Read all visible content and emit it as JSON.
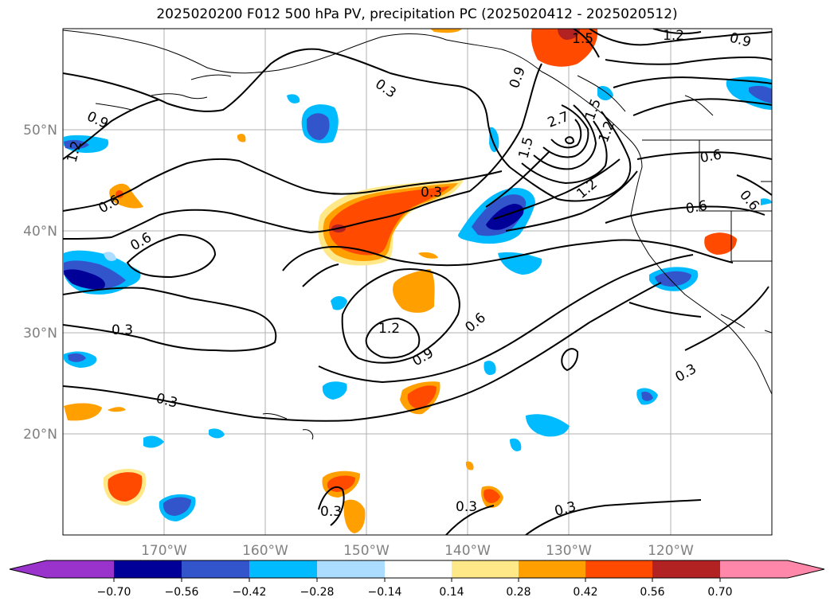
{
  "title": "2025020200 F012 500 hPa PV, precipitation PC (2025020412 - 2025020512)",
  "lat_labels": [
    "50°N",
    "40°N",
    "30°N",
    "20°N"
  ],
  "lon_labels": [
    "170°W",
    "160°W",
    "150°W",
    "140°W",
    "130°W",
    "120°W"
  ],
  "contour_labels": {
    "c1": "0.3",
    "c2": "0.9",
    "c3": "1.2",
    "c4": "0.6",
    "c5": "0.6",
    "c6": "0.3",
    "c7": "0.3",
    "c8": "1.2",
    "c9": "0.9",
    "c10": "0.6",
    "c11": "0.3",
    "c12": "1.5",
    "c13": "1.2",
    "c14": "0.9",
    "c15": "0.3",
    "c16": "0.3",
    "c17": "0.3",
    "c18": "0.6",
    "c19": "0.6",
    "c20": "0.6",
    "c21": "0.3",
    "c22": "1.5",
    "c23": "1.2",
    "c24": "2.7",
    "c25": "1.5",
    "c26": "1.2",
    "c27": "0.9"
  },
  "colorbar": {
    "ticks": [
      "−0.70",
      "−0.56",
      "−0.42",
      "−0.28",
      "−0.14",
      "0.14",
      "0.28",
      "0.42",
      "0.56",
      "0.70"
    ],
    "colors": [
      "#9933cc",
      "#000099",
      "#3355cc",
      "#00bbff",
      "#aaddff",
      "#ffffff",
      "#ffe888",
      "#ffa000",
      "#ff4a00",
      "#b22222",
      "#ff88aa"
    ]
  },
  "colors": {
    "shade_neg_light": "#aaddff",
    "shade_neg_mid": "#00bbff",
    "shade_neg_dark": "#3355cc",
    "shade_neg_darkest": "#000099",
    "shade_pos_light": "#ffe888",
    "shade_pos_mid": "#ffa000",
    "shade_pos_dark": "#ff4a00",
    "shade_pos_darkest": "#b22222"
  }
}
